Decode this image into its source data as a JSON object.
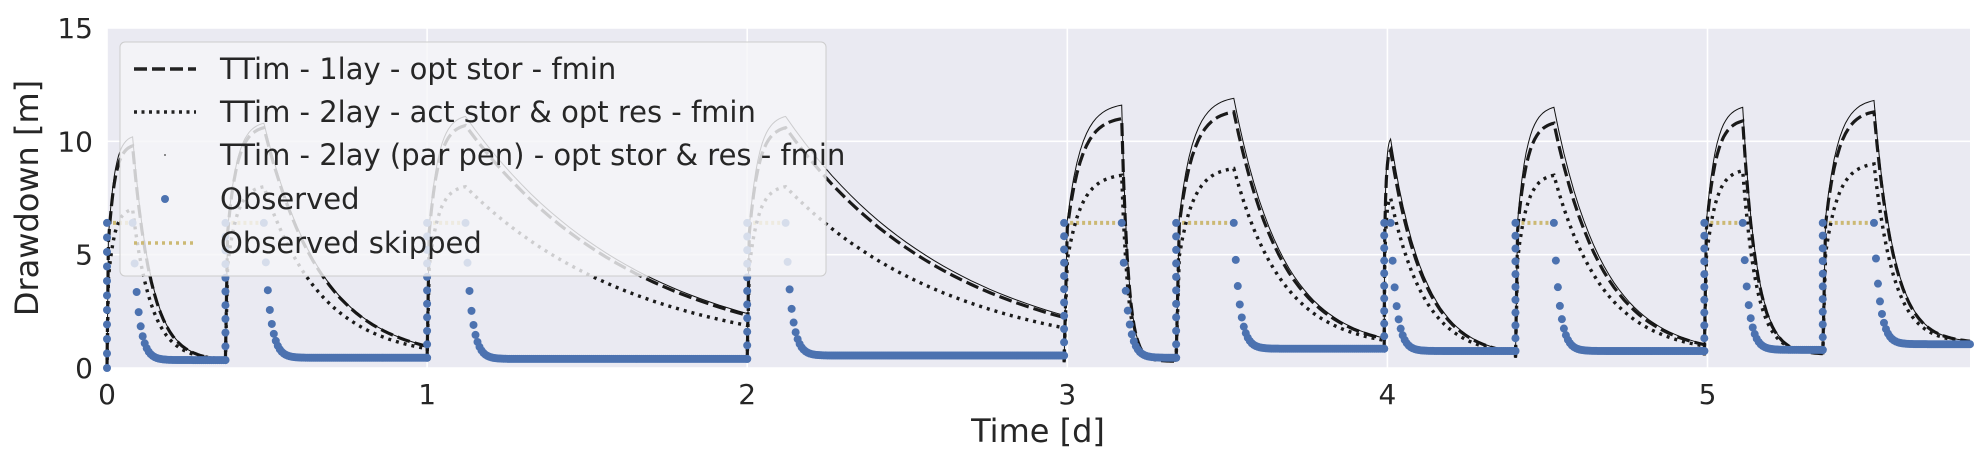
{
  "chart_data": {
    "type": "line",
    "title": "",
    "xlabel": "Time [d]",
    "ylabel": "Drawdown [m]",
    "xlim": [
      0,
      5.82
    ],
    "ylim": [
      0,
      15
    ],
    "xticks": [
      0,
      1,
      2,
      3,
      4,
      5
    ],
    "yticks": [
      0,
      5,
      10,
      15
    ],
    "grid": true,
    "legend_position": "upper-left",
    "colors": {
      "observed": "#4c72b0",
      "observed_skipped": "#ccb974",
      "model": "#000000",
      "axes_bg": "#eaeaf2"
    },
    "pumping_periods": [
      {
        "start": 0.0,
        "end": 0.08
      },
      {
        "start": 0.37,
        "end": 0.49
      },
      {
        "start": 1.0,
        "end": 1.12
      },
      {
        "start": 2.0,
        "end": 2.12
      },
      {
        "start": 2.99,
        "end": 3.17
      },
      {
        "start": 3.34,
        "end": 3.52
      },
      {
        "start": 3.99,
        "end": 4.01
      },
      {
        "start": 4.4,
        "end": 4.52
      },
      {
        "start": 4.99,
        "end": 5.11
      },
      {
        "start": 5.36,
        "end": 5.52
      }
    ],
    "series": [
      {
        "name": "TTim - 1lay - opt stor - fmin",
        "style": "dashed",
        "peaks": [
          9.8,
          10.6,
          10.7,
          10.6,
          11.0,
          11.3,
          9.6,
          10.8,
          10.9,
          11.3
        ],
        "recovery_end": [
          0.3,
          0.35,
          0.3,
          0.25,
          0.3,
          0.8,
          0.45,
          0.55,
          0.6,
          1.1
        ]
      },
      {
        "name": "TTim - 2lay - act stor & opt res - fmin",
        "style": "dotted",
        "peaks": [
          7.0,
          8.0,
          8.0,
          8.0,
          8.5,
          8.8,
          7.5,
          8.5,
          8.7,
          9.0
        ],
        "recovery_end": [
          0.35,
          0.4,
          0.4,
          0.3,
          0.35,
          0.85,
          0.5,
          0.6,
          0.65,
          1.1
        ]
      },
      {
        "name": "TTim - 2lay (par pen) - opt stor & res - fmin",
        "style": "thin",
        "peaks": [
          10.2,
          10.8,
          11.1,
          11.1,
          11.6,
          11.9,
          10.1,
          11.5,
          11.5,
          11.8
        ],
        "recovery_end": [
          0.3,
          0.35,
          0.3,
          0.25,
          0.3,
          0.8,
          0.45,
          0.55,
          0.6,
          1.1
        ]
      },
      {
        "name": "Observed",
        "style": "markers",
        "plateau": 6.4,
        "recovery_end": [
          0.35,
          0.45,
          0.4,
          0.55,
          0.45,
          0.85,
          0.75,
          0.75,
          0.8,
          1.05
        ]
      },
      {
        "name": "Observed skipped",
        "style": "dotted-light",
        "plateau": 6.4
      }
    ]
  }
}
